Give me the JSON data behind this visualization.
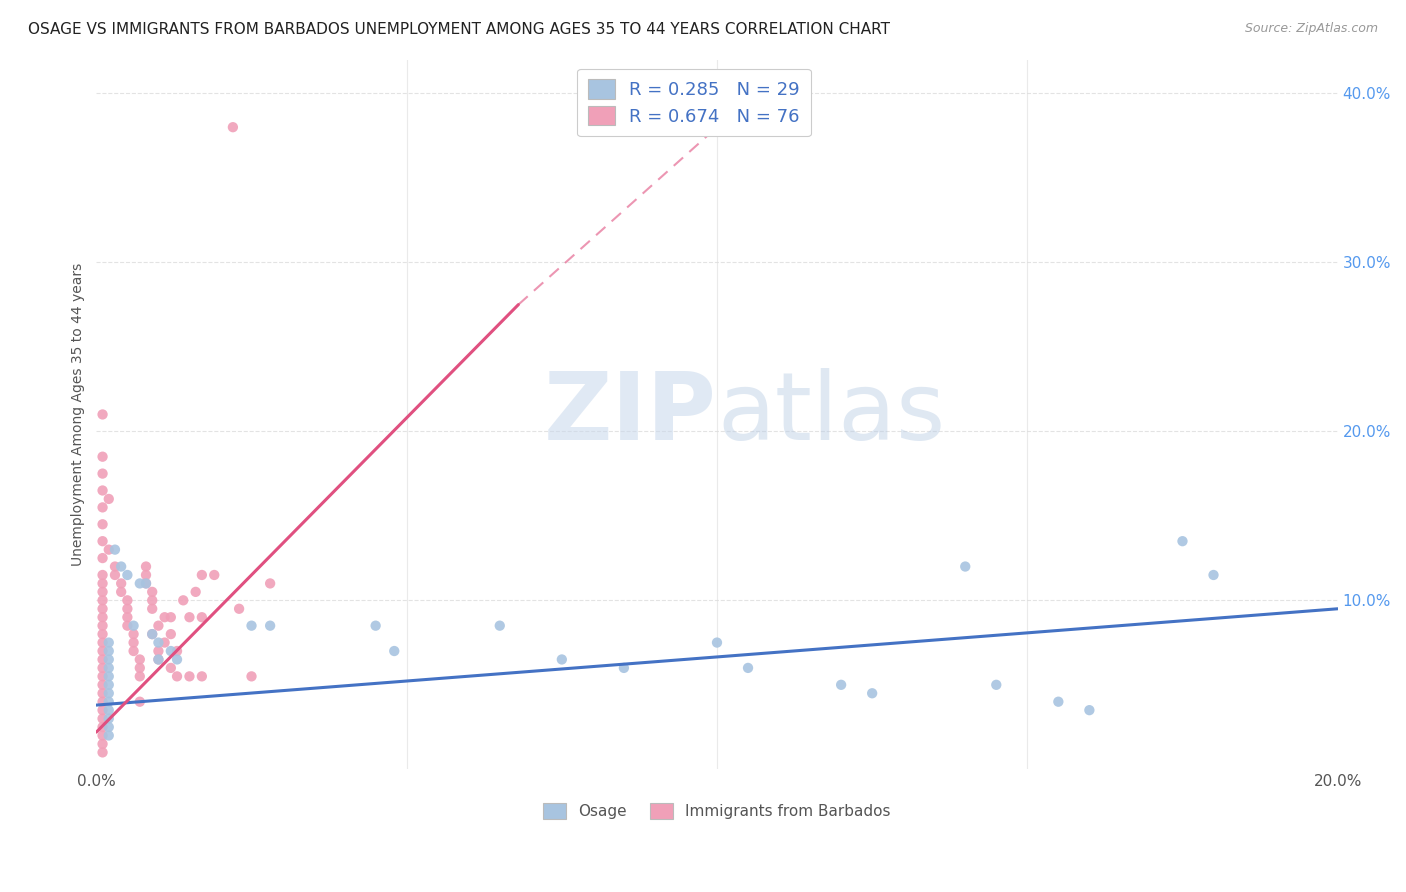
{
  "title": "OSAGE VS IMMIGRANTS FROM BARBADOS UNEMPLOYMENT AMONG AGES 35 TO 44 YEARS CORRELATION CHART",
  "source": "Source: ZipAtlas.com",
  "ylabel": "Unemployment Among Ages 35 to 44 years",
  "xlim": [
    0.0,
    0.2
  ],
  "ylim": [
    0.0,
    0.42
  ],
  "watermark_zip": "ZIP",
  "watermark_atlas": "atlas",
  "osage_color": "#a8c4e0",
  "barbados_color": "#f0a0b8",
  "osage_line_color": "#4472c4",
  "barbados_line_color": "#e05080",
  "osage_scatter": [
    [
      0.002,
      0.075
    ],
    [
      0.002,
      0.07
    ],
    [
      0.002,
      0.065
    ],
    [
      0.002,
      0.06
    ],
    [
      0.002,
      0.055
    ],
    [
      0.002,
      0.05
    ],
    [
      0.002,
      0.045
    ],
    [
      0.002,
      0.04
    ],
    [
      0.002,
      0.035
    ],
    [
      0.002,
      0.03
    ],
    [
      0.002,
      0.025
    ],
    [
      0.002,
      0.02
    ],
    [
      0.003,
      0.13
    ],
    [
      0.004,
      0.12
    ],
    [
      0.005,
      0.115
    ],
    [
      0.006,
      0.085
    ],
    [
      0.007,
      0.11
    ],
    [
      0.008,
      0.11
    ],
    [
      0.009,
      0.08
    ],
    [
      0.01,
      0.075
    ],
    [
      0.01,
      0.065
    ],
    [
      0.012,
      0.07
    ],
    [
      0.013,
      0.065
    ],
    [
      0.025,
      0.085
    ],
    [
      0.028,
      0.085
    ],
    [
      0.045,
      0.085
    ],
    [
      0.048,
      0.07
    ],
    [
      0.065,
      0.085
    ],
    [
      0.075,
      0.065
    ],
    [
      0.085,
      0.06
    ],
    [
      0.1,
      0.075
    ],
    [
      0.105,
      0.06
    ],
    [
      0.12,
      0.05
    ],
    [
      0.125,
      0.045
    ],
    [
      0.14,
      0.12
    ],
    [
      0.145,
      0.05
    ],
    [
      0.155,
      0.04
    ],
    [
      0.16,
      0.035
    ],
    [
      0.175,
      0.135
    ],
    [
      0.18,
      0.115
    ]
  ],
  "barbados_scatter": [
    [
      0.001,
      0.21
    ],
    [
      0.001,
      0.185
    ],
    [
      0.001,
      0.175
    ],
    [
      0.001,
      0.165
    ],
    [
      0.001,
      0.155
    ],
    [
      0.001,
      0.145
    ],
    [
      0.001,
      0.135
    ],
    [
      0.001,
      0.125
    ],
    [
      0.001,
      0.115
    ],
    [
      0.001,
      0.11
    ],
    [
      0.001,
      0.105
    ],
    [
      0.001,
      0.1
    ],
    [
      0.001,
      0.095
    ],
    [
      0.001,
      0.09
    ],
    [
      0.001,
      0.085
    ],
    [
      0.001,
      0.08
    ],
    [
      0.001,
      0.075
    ],
    [
      0.001,
      0.07
    ],
    [
      0.001,
      0.065
    ],
    [
      0.001,
      0.06
    ],
    [
      0.001,
      0.055
    ],
    [
      0.001,
      0.05
    ],
    [
      0.001,
      0.045
    ],
    [
      0.001,
      0.04
    ],
    [
      0.001,
      0.035
    ],
    [
      0.001,
      0.03
    ],
    [
      0.001,
      0.025
    ],
    [
      0.001,
      0.02
    ],
    [
      0.001,
      0.015
    ],
    [
      0.001,
      0.01
    ],
    [
      0.002,
      0.16
    ],
    [
      0.002,
      0.13
    ],
    [
      0.003,
      0.12
    ],
    [
      0.003,
      0.115
    ],
    [
      0.004,
      0.11
    ],
    [
      0.004,
      0.105
    ],
    [
      0.005,
      0.1
    ],
    [
      0.005,
      0.095
    ],
    [
      0.005,
      0.09
    ],
    [
      0.005,
      0.085
    ],
    [
      0.006,
      0.08
    ],
    [
      0.006,
      0.075
    ],
    [
      0.006,
      0.07
    ],
    [
      0.007,
      0.065
    ],
    [
      0.007,
      0.06
    ],
    [
      0.007,
      0.055
    ],
    [
      0.007,
      0.04
    ],
    [
      0.008,
      0.12
    ],
    [
      0.008,
      0.115
    ],
    [
      0.008,
      0.11
    ],
    [
      0.009,
      0.105
    ],
    [
      0.009,
      0.1
    ],
    [
      0.009,
      0.095
    ],
    [
      0.009,
      0.08
    ],
    [
      0.01,
      0.085
    ],
    [
      0.01,
      0.07
    ],
    [
      0.01,
      0.065
    ],
    [
      0.011,
      0.09
    ],
    [
      0.011,
      0.075
    ],
    [
      0.012,
      0.09
    ],
    [
      0.012,
      0.08
    ],
    [
      0.012,
      0.06
    ],
    [
      0.013,
      0.07
    ],
    [
      0.013,
      0.055
    ],
    [
      0.014,
      0.1
    ],
    [
      0.015,
      0.09
    ],
    [
      0.015,
      0.055
    ],
    [
      0.016,
      0.105
    ],
    [
      0.017,
      0.115
    ],
    [
      0.017,
      0.09
    ],
    [
      0.017,
      0.055
    ],
    [
      0.019,
      0.115
    ],
    [
      0.022,
      0.38
    ],
    [
      0.023,
      0.095
    ],
    [
      0.025,
      0.055
    ],
    [
      0.028,
      0.11
    ]
  ],
  "osage_trendline": [
    [
      0.0,
      0.038
    ],
    [
      0.2,
      0.095
    ]
  ],
  "barbados_trendline": [
    [
      0.0,
      0.022
    ],
    [
      0.068,
      0.275
    ]
  ],
  "barbados_trendline_dashed": [
    [
      0.068,
      0.275
    ],
    [
      0.1,
      0.38
    ]
  ],
  "background_color": "#ffffff",
  "grid_color": "#dddddd",
  "title_fontsize": 11,
  "source_fontsize": 9,
  "ylabel_fontsize": 10,
  "tick_fontsize": 11
}
